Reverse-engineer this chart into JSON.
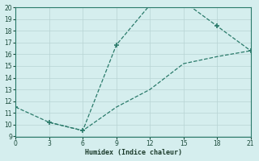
{
  "xlabel": "Humidex (Indice chaleur)",
  "series1_x": [
    0,
    3,
    6,
    9,
    12,
    15,
    18,
    21
  ],
  "series1_y": [
    11.5,
    10.2,
    9.5,
    16.8,
    20.2,
    20.5,
    18.4,
    16.3
  ],
  "series2_x": [
    3,
    6,
    9,
    12,
    15,
    18,
    21
  ],
  "series2_y": [
    10.2,
    9.5,
    11.5,
    13.0,
    15.2,
    15.8,
    16.3
  ],
  "xlim": [
    0,
    21
  ],
  "ylim": [
    9,
    20
  ],
  "yticks": [
    9,
    10,
    11,
    12,
    13,
    14,
    15,
    16,
    17,
    18,
    19,
    20
  ],
  "xticks": [
    0,
    3,
    6,
    9,
    12,
    15,
    18,
    21
  ],
  "line_color": "#2a7a6a",
  "marker_color": "#2a7a6a",
  "bg_color": "#d5eeee",
  "grid_color": "#b8d4d4",
  "axis_color": "#2a7a6a"
}
